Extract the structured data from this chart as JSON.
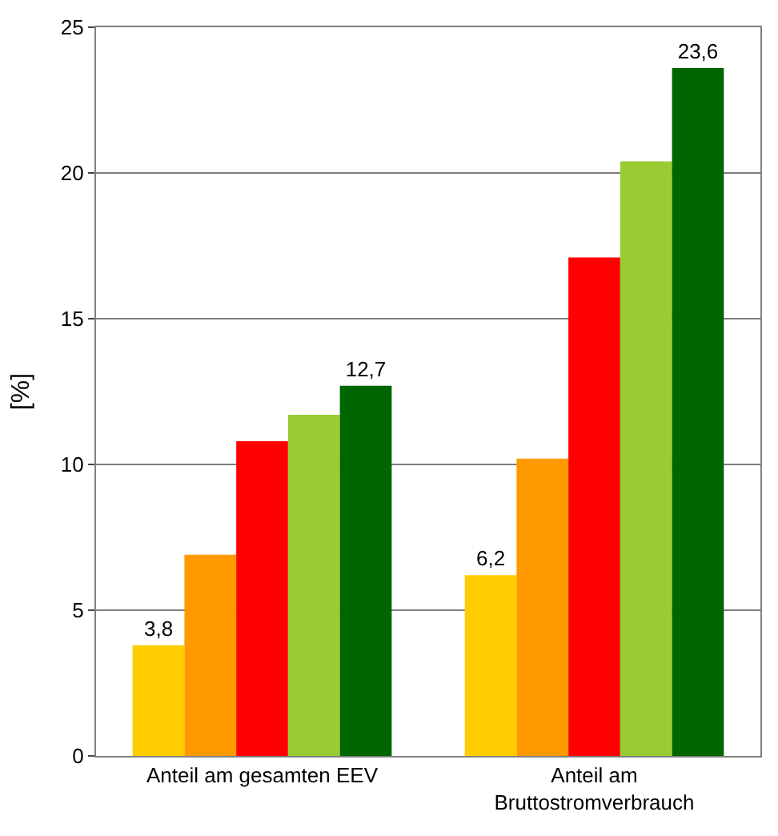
{
  "chart_data": {
    "type": "bar",
    "ylabel": "[%]",
    "categories": [
      "Anteil am gesamten EEV",
      "Anteil am\nBruttostromverbrauch"
    ],
    "series": [
      {
        "color": "#ffcc00",
        "values": [
          3.8,
          6.2
        ],
        "value_labels": [
          "3,8",
          "6,2"
        ]
      },
      {
        "color": "#ff9900",
        "values": [
          6.9,
          10.2
        ]
      },
      {
        "color": "#ff0000",
        "values": [
          10.8,
          17.1
        ]
      },
      {
        "color": "#99cc33",
        "values": [
          11.7,
          20.4
        ]
      },
      {
        "color": "#006600",
        "values": [
          12.7,
          23.6
        ],
        "value_labels": [
          "12,7",
          "23,6"
        ]
      }
    ],
    "ylim": [
      0,
      25
    ],
    "yticks": [
      0,
      5,
      10,
      15,
      20,
      25
    ],
    "grid": "y",
    "legend": false
  }
}
